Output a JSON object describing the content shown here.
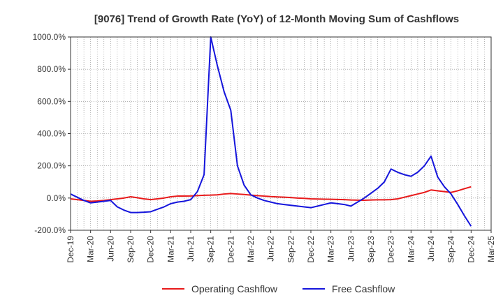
{
  "chart_data": {
    "type": "line",
    "title": "[9076]  Trend of Growth Rate (YoY) of 12-Month Moving Sum of Cashflows",
    "xlabel": "",
    "ylabel": "",
    "ylim": [
      -200,
      1000
    ],
    "yticks": [
      -200,
      0,
      200,
      400,
      600,
      800,
      1000
    ],
    "ytick_labels": [
      "-200.0%",
      "0.0%",
      "200.0%",
      "400.0%",
      "600.0%",
      "800.0%",
      "1000.0%"
    ],
    "xtick_labels": [
      "Dec-19",
      "Mar-20",
      "Jun-20",
      "Sep-20",
      "Dec-20",
      "Mar-21",
      "Jun-21",
      "Sep-21",
      "Dec-21",
      "Mar-22",
      "Jun-22",
      "Sep-22",
      "Dec-22",
      "Mar-23",
      "Jun-23",
      "Sep-23",
      "Dec-23",
      "Mar-24",
      "Jun-24",
      "Sep-24",
      "Dec-24",
      "Mar-25"
    ],
    "grid": true,
    "legend_position": "bottom",
    "x": [
      "Dec-19",
      "Jan-20",
      "Feb-20",
      "Mar-20",
      "Apr-20",
      "May-20",
      "Jun-20",
      "Jul-20",
      "Aug-20",
      "Sep-20",
      "Oct-20",
      "Nov-20",
      "Dec-20",
      "Jan-21",
      "Feb-21",
      "Mar-21",
      "Apr-21",
      "May-21",
      "Jun-21",
      "Jul-21",
      "Aug-21",
      "Sep-21",
      "Oct-21",
      "Nov-21",
      "Dec-21",
      "Jan-22",
      "Feb-22",
      "Mar-22",
      "Apr-22",
      "May-22",
      "Jun-22",
      "Jul-22",
      "Aug-22",
      "Sep-22",
      "Oct-22",
      "Nov-22",
      "Dec-22",
      "Jan-23",
      "Feb-23",
      "Mar-23",
      "Apr-23",
      "May-23",
      "Jun-23",
      "Jul-23",
      "Aug-23",
      "Sep-23",
      "Oct-23",
      "Nov-23",
      "Dec-23",
      "Jan-24",
      "Feb-24",
      "Mar-24",
      "Apr-24",
      "May-24",
      "Jun-24",
      "Jul-24",
      "Aug-24",
      "Sep-24",
      "Oct-24",
      "Nov-24",
      "Dec-24"
    ],
    "series": [
      {
        "name": "Operating Cashflow",
        "color": "#e8191a",
        "values": [
          -5,
          -10,
          -15,
          -20,
          -18,
          -15,
          -10,
          -5,
          0,
          8,
          2,
          -5,
          -10,
          -5,
          0,
          8,
          12,
          12,
          13,
          15,
          17,
          18,
          20,
          25,
          28,
          25,
          22,
          18,
          15,
          12,
          9,
          7,
          5,
          3,
          0,
          -2,
          -5,
          -6,
          -7,
          -8,
          -9,
          -10,
          -12,
          -13,
          -14,
          -12,
          -11,
          -11,
          -10,
          -5,
          5,
          15,
          25,
          35,
          50,
          45,
          40,
          35,
          45,
          58,
          70
        ]
      },
      {
        "name": "Free Cashflow",
        "color": "#1515dc",
        "values": [
          25,
          5,
          -15,
          -30,
          -25,
          -20,
          -15,
          -55,
          -75,
          -90,
          -90,
          -88,
          -85,
          -70,
          -55,
          -35,
          -25,
          -20,
          -10,
          40,
          145,
          1000,
          820,
          660,
          545,
          200,
          80,
          20,
          0,
          -15,
          -25,
          -35,
          -40,
          -45,
          -50,
          -55,
          -60,
          -50,
          -40,
          -30,
          -35,
          -40,
          -50,
          -25,
          0,
          30,
          60,
          100,
          180,
          160,
          145,
          135,
          160,
          200,
          260,
          130,
          70,
          25,
          -40,
          -110,
          -175
        ]
      }
    ]
  },
  "colors": {
    "axis": "#333333",
    "grid": "#888888",
    "text": "#333333"
  }
}
